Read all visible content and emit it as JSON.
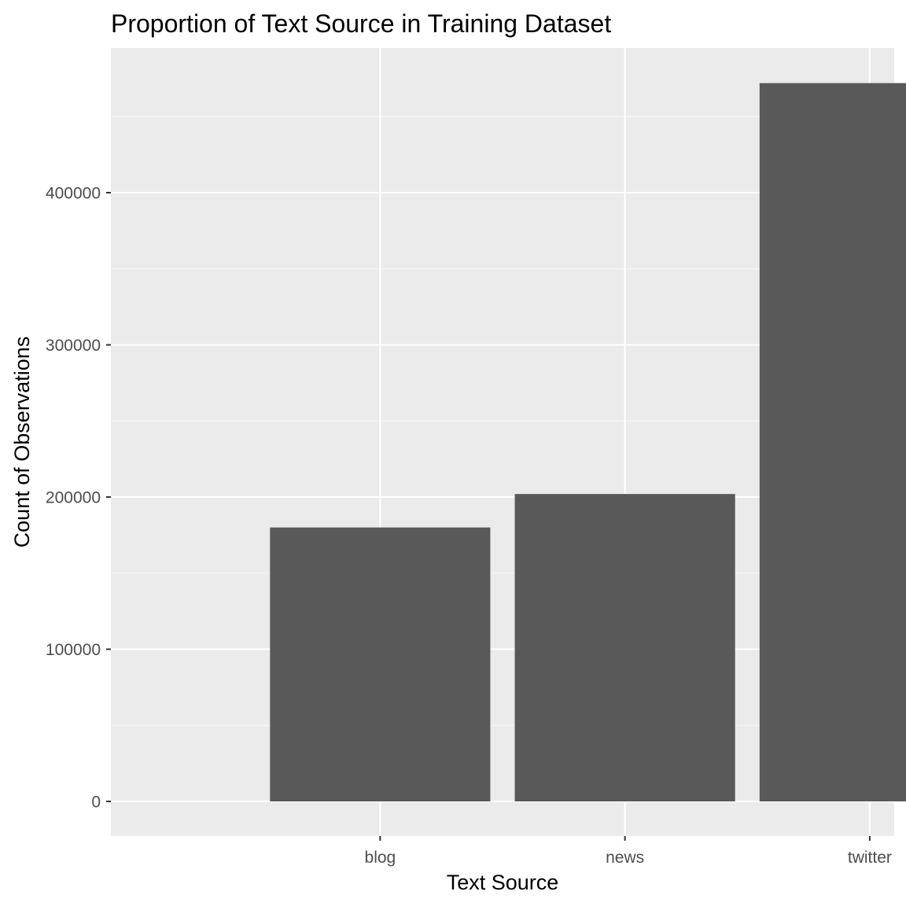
{
  "chart_data": {
    "type": "bar",
    "title": "Proportion of Text Source in Training Dataset",
    "xlabel": "Text Source",
    "ylabel": "Count of Observations",
    "categories": [
      "blog",
      "news",
      "twitter"
    ],
    "values": [
      180000,
      202000,
      472000
    ],
    "ylim": [
      0,
      490000
    ],
    "yticks": [
      0,
      100000,
      200000,
      300000,
      400000
    ],
    "ytick_labels": [
      "0",
      "100000",
      "200000",
      "300000",
      "400000"
    ],
    "grid": true,
    "legend": "none"
  },
  "colors": {
    "panel_background": "#ebebeb",
    "grid_major": "#ffffff",
    "grid_minor": "#f5f5f5",
    "bar_fill": "#595959",
    "tick_text": "#4d4d4d",
    "tick_mark": "#333333"
  }
}
